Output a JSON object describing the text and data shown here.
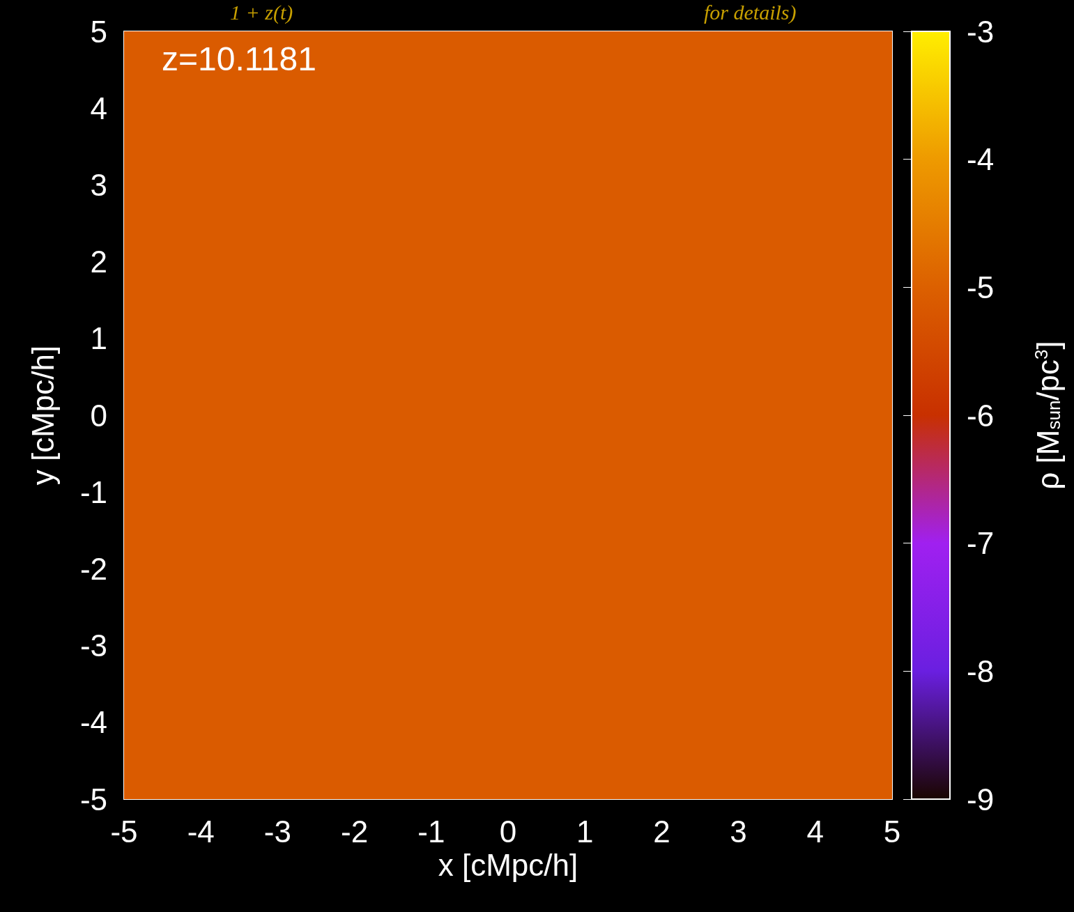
{
  "chart_data": {
    "type": "heatmap",
    "xlabel": "x [cMpc/h]",
    "ylabel": "y [cMpc/h]",
    "clabel": "ρ [M$_{sun}$/pc$^{3}$]",
    "annotations": [
      "z=10.1181",
      "1 + z(t)",
      "for details)"
    ],
    "xlim": [
      -5,
      5
    ],
    "xticks": [
      -5,
      -4,
      -3,
      -2,
      -1,
      0,
      1,
      2,
      3,
      4,
      5
    ],
    "ylim": [
      -5,
      5
    ],
    "yticks": [
      -5,
      -4,
      -3,
      -2,
      -1,
      0,
      1,
      2,
      3,
      4,
      5
    ],
    "cells": [
      [
        -5.1
      ]
    ],
    "clim": [
      -9,
      -3
    ],
    "cticks": [
      -9,
      -8,
      -7,
      -6,
      -5,
      -4,
      -3
    ]
  }
}
